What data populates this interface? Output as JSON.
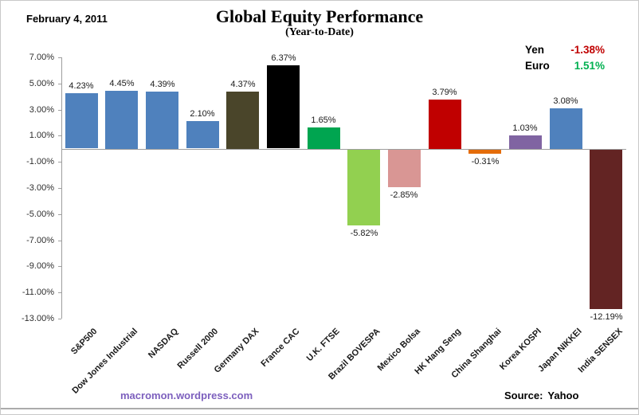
{
  "page": {
    "date": "February 4, 2011",
    "title": "Global Equity Performance",
    "subtitle": "(Year-to-Date)"
  },
  "currency_legend": [
    {
      "label": "Yen",
      "value": "-1.38%",
      "value_color": "#C00000"
    },
    {
      "label": "Euro",
      "value": "1.51%",
      "value_color": "#00B050"
    }
  ],
  "footer": {
    "site": "macromon.wordpress.com",
    "site_color": "#7D60BE",
    "source_label": "Source:",
    "source_value": "Yahoo"
  },
  "chart_data": {
    "type": "bar",
    "title": "Global Equity Performance",
    "subtitle": "(Year-to-Date)",
    "unit": "percent year-to-date change",
    "categories": [
      "S&P500",
      "Dow Jones Industrial",
      "NASDAQ",
      "Russell 2000",
      "Germany DAX",
      "France CAC",
      "U.K. FTSE",
      "Brazil BOVESPA",
      "Mexico Bolsa",
      "HK Hang Seng",
      "China Shanghai",
      "Korea KOSPI",
      "Japan NIKKEI",
      "India SENSEX"
    ],
    "values": [
      4.23,
      4.45,
      4.39,
      2.1,
      4.37,
      6.37,
      1.65,
      -5.82,
      -2.85,
      3.79,
      -0.31,
      1.03,
      3.08,
      -12.19
    ],
    "data_labels": [
      "4.23%",
      "4.45%",
      "4.39%",
      "2.10%",
      "4.37%",
      "6.37%",
      "1.65%",
      "-5.82%",
      "-2.85%",
      "3.79%",
      "-0.31%",
      "1.03%",
      "3.08%",
      "-12.19%"
    ],
    "bar_colors": [
      "#4F81BD",
      "#4F81BD",
      "#4F81BD",
      "#4F81BD",
      "#4A452A",
      "#000000",
      "#00A550",
      "#92D050",
      "#D99694",
      "#C00000",
      "#E46C0A",
      "#8064A2",
      "#4F81BD",
      "#632423"
    ],
    "ylim": [
      -13,
      7
    ],
    "yticks": [
      {
        "value": 7,
        "label": "7.00%"
      },
      {
        "value": 5,
        "label": "5.00%"
      },
      {
        "value": 3,
        "label": "3.00%"
      },
      {
        "value": 1,
        "label": "1.00%"
      },
      {
        "value": -1,
        "label": "-1.00%"
      },
      {
        "value": -3,
        "label": "-3.00%"
      },
      {
        "value": -5,
        "label": "-5.00%"
      },
      {
        "value": -7,
        "label": "-7.00%"
      },
      {
        "value": -9,
        "label": "-9.00%"
      },
      {
        "value": -11,
        "label": "-11.00%"
      },
      {
        "value": -13,
        "label": "-13.00%"
      }
    ],
    "grid": false,
    "legend_position": "none",
    "axis_color": "#9E9E9E"
  }
}
